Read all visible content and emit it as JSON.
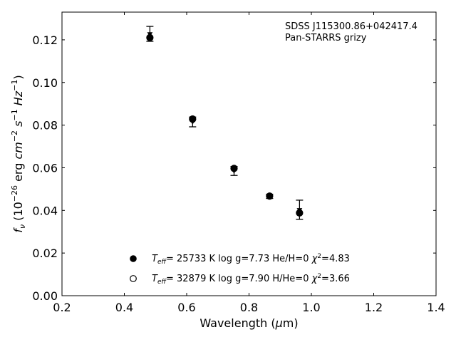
{
  "chart_data": {
    "type": "scatter",
    "title": "",
    "xlabel": "Wavelength (μm)",
    "ylabel": "f_ν (10^-26 erg cm^-2 s^-1 Hz^-1)",
    "xlim": [
      0.2,
      1.4
    ],
    "ylim": [
      0.0,
      0.133
    ],
    "xticks": [
      0.2,
      0.4,
      0.6,
      0.8,
      1.0,
      1.2,
      1.4
    ],
    "xtick_labels": [
      "0.2",
      "0.4",
      "0.6",
      "0.8",
      "1.0",
      "1.2",
      "1.4"
    ],
    "yticks": [
      0.0,
      0.02,
      0.04,
      0.06,
      0.08,
      0.1,
      0.12
    ],
    "ytick_labels": [
      "0.00",
      "0.02",
      "0.04",
      "0.06",
      "0.08",
      "0.10",
      "0.12"
    ],
    "grid": false,
    "legend_position": "bottom-center",
    "annotation": {
      "line1": "SDSS J115300.86+042417.4",
      "line2": "Pan-STARRS grizy"
    },
    "observed": {
      "x": [
        0.482,
        0.619,
        0.752,
        0.866,
        0.962
      ],
      "y": [
        0.1228,
        0.0815,
        0.0585,
        0.0466,
        0.0403
      ],
      "yerr": [
        0.0035,
        0.0023,
        0.0021,
        0.001,
        0.0045
      ]
    },
    "series": [
      {
        "name": "T_eff= 25733 K  log g=7.73  He/H=0  χ²=4.83",
        "label": {
          "teff": "25733 K",
          "logg": "7.73",
          "comp_label": "He/H=0",
          "chi2": "4.83"
        },
        "marker": "filled-circle",
        "x": [
          0.482,
          0.619,
          0.752,
          0.866,
          0.962
        ],
        "y": [
          0.121,
          0.0828,
          0.0597,
          0.0467,
          0.0388
        ]
      },
      {
        "name": "T_eff= 32879 K  log g=7.90  H/He=0  χ²=3.66",
        "label": {
          "teff": "32879 K",
          "logg": "7.90",
          "comp_label": "H/He=0",
          "chi2": "3.66"
        },
        "marker": "open-circle",
        "x": [
          0.482,
          0.619,
          0.752,
          0.866,
          0.962
        ],
        "y": [
          0.1212,
          0.083,
          0.0598,
          0.0468,
          0.039
        ]
      }
    ]
  }
}
